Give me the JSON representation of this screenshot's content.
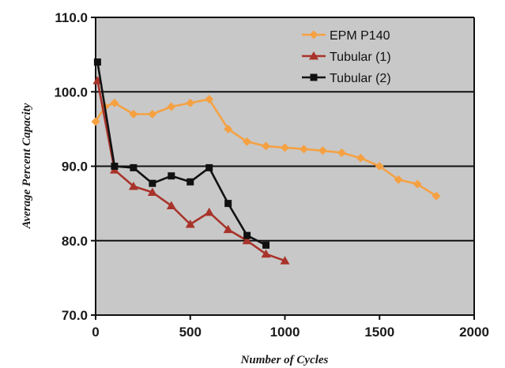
{
  "chart_data": {
    "type": "line",
    "title": "",
    "xlabel": "Number of Cycles",
    "ylabel": "Average Percent Capacity",
    "xlim": [
      0,
      2000
    ],
    "ylim": [
      70,
      110
    ],
    "x_ticks": [
      0,
      500,
      1000,
      1500,
      2000
    ],
    "x_tick_labels": [
      "0",
      "500",
      "1000",
      "1500",
      "2000"
    ],
    "y_ticks": [
      70,
      80,
      90,
      100,
      110
    ],
    "y_tick_labels": [
      "70.0",
      "80.0",
      "90.0",
      "100.0",
      "110.0"
    ],
    "grid": "horizontal",
    "legend_position": "top-right",
    "plot_background": "#c8c8c8",
    "series": [
      {
        "name": "EPM P140",
        "color": "#f5a142",
        "marker": "diamond",
        "points": [
          [
            0,
            96
          ],
          [
            50,
            98
          ],
          [
            100,
            98.5
          ],
          [
            200,
            97
          ],
          [
            300,
            97
          ],
          [
            400,
            98
          ],
          [
            500,
            98.5
          ],
          [
            600,
            99
          ],
          [
            700,
            95
          ],
          [
            800,
            93.3
          ],
          [
            900,
            92.7
          ],
          [
            1000,
            92.5
          ],
          [
            1100,
            92.3
          ],
          [
            1200,
            92.1
          ],
          [
            1300,
            91.8
          ],
          [
            1400,
            91.1
          ],
          [
            1500,
            90
          ],
          [
            1600,
            88.2
          ],
          [
            1700,
            87.6
          ],
          [
            1800,
            86
          ]
        ]
      },
      {
        "name": "Tubular (1)",
        "color": "#a8332a",
        "marker": "triangle",
        "points": [
          [
            10,
            101.5
          ],
          [
            100,
            89.5
          ],
          [
            200,
            87.3
          ],
          [
            300,
            86.5
          ],
          [
            400,
            84.7
          ],
          [
            500,
            82.2
          ],
          [
            600,
            83.8
          ],
          [
            700,
            81.5
          ],
          [
            800,
            80
          ],
          [
            900,
            78.2
          ],
          [
            1000,
            77.3
          ]
        ]
      },
      {
        "name": "Tubular (2)",
        "color": "#111111",
        "marker": "square",
        "points": [
          [
            10,
            104
          ],
          [
            100,
            90
          ],
          [
            200,
            89.8
          ],
          [
            300,
            87.7
          ],
          [
            400,
            88.7
          ],
          [
            500,
            87.9
          ],
          [
            600,
            89.8
          ],
          [
            700,
            85
          ],
          [
            800,
            80.7
          ],
          [
            900,
            79.4
          ]
        ]
      }
    ]
  }
}
